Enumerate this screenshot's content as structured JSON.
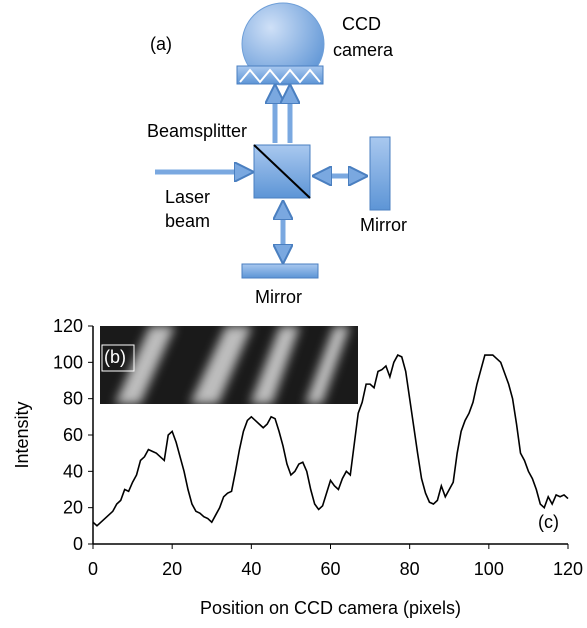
{
  "diagram": {
    "panel_label": "(a)",
    "camera_label": [
      "CCD",
      "camera"
    ],
    "beamsplitter_label": "Beamsplitter",
    "laser_label": [
      "Laser",
      "beam"
    ],
    "mirror_right_label": "Mirror",
    "mirror_bottom_label": "Mirror"
  },
  "chart_data": {
    "type": "line",
    "xlabel": "Position on CCD camera (pixels)",
    "ylabel": "Intensity",
    "annotations": [
      "(b)",
      "(c)"
    ],
    "x": [
      0,
      1,
      2,
      3,
      4,
      5,
      6,
      7,
      8,
      9,
      10,
      11,
      12,
      13,
      14,
      15,
      16,
      17,
      18,
      19,
      20,
      21,
      22,
      23,
      24,
      25,
      26,
      27,
      28,
      29,
      30,
      31,
      32,
      33,
      34,
      35,
      36,
      37,
      38,
      39,
      40,
      41,
      42,
      43,
      44,
      45,
      46,
      47,
      48,
      49,
      50,
      51,
      52,
      53,
      54,
      55,
      56,
      57,
      58,
      59,
      60,
      61,
      62,
      63,
      64,
      65,
      66,
      67,
      68,
      69,
      70,
      71,
      72,
      73,
      74,
      75,
      76,
      77,
      78,
      79,
      80,
      81,
      82,
      83,
      84,
      85,
      86,
      87,
      88,
      89,
      90,
      91,
      92,
      93,
      94,
      95,
      96,
      97,
      98,
      99,
      100,
      101,
      102,
      103,
      104,
      105,
      106,
      107,
      108,
      109,
      110,
      111,
      112,
      113,
      114,
      115,
      116,
      117,
      118,
      119,
      120
    ],
    "values": [
      12,
      10,
      12,
      14,
      16,
      18,
      22,
      24,
      30,
      29,
      34,
      38,
      46,
      48,
      52,
      51,
      50,
      48,
      46,
      60,
      62,
      56,
      48,
      40,
      30,
      22,
      18,
      17,
      15,
      14,
      12,
      16,
      20,
      26,
      28,
      29,
      40,
      52,
      62,
      68,
      70,
      68,
      66,
      64,
      66,
      70,
      69,
      62,
      54,
      44,
      38,
      40,
      44,
      45,
      40,
      30,
      22,
      19,
      21,
      28,
      35,
      32,
      30,
      36,
      40,
      38,
      55,
      72,
      78,
      88,
      88,
      86,
      95,
      96,
      98,
      92,
      100,
      104,
      103,
      95,
      80,
      65,
      50,
      36,
      28,
      23,
      22,
      24,
      32,
      26,
      30,
      34,
      50,
      62,
      68,
      72,
      78,
      88,
      96,
      104,
      104,
      104,
      102,
      100,
      94,
      88,
      80,
      66,
      50,
      46,
      40,
      36,
      30,
      22,
      20,
      26,
      22,
      27,
      26,
      27,
      25
    ],
    "color": "#000000",
    "xlim": [
      0,
      120
    ],
    "xticks": [
      0,
      20,
      40,
      60,
      80,
      100,
      120
    ],
    "ylim": [
      0,
      120
    ],
    "yticks": [
      0,
      20,
      40,
      60,
      80,
      100,
      120
    ]
  }
}
